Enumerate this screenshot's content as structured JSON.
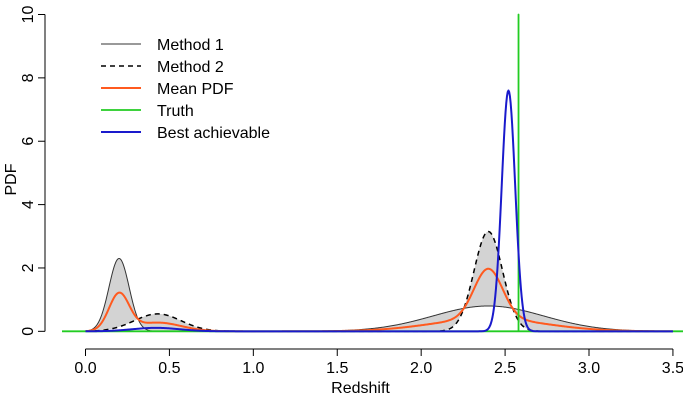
{
  "chart_data": {
    "type": "line",
    "xlabel": "Redshift",
    "ylabel": "PDF",
    "xlim": [
      -0.14,
      3.56
    ],
    "ylim": [
      -0.4,
      10.3
    ],
    "x_ticks": [
      0.0,
      0.5,
      1.0,
      1.5,
      2.0,
      2.5,
      3.0,
      3.5
    ],
    "x_tick_labels": [
      "0.0",
      "0.5",
      "1.0",
      "1.5",
      "2.0",
      "2.5",
      "3.0",
      "3.5"
    ],
    "y_ticks": [
      0,
      2,
      4,
      6,
      8,
      10
    ],
    "y_tick_labels": [
      "0",
      "2",
      "4",
      "6",
      "8",
      "10"
    ],
    "grid": false,
    "legend_position": "top-left",
    "shaded_band": {
      "between": [
        "Method 1",
        "Method 2"
      ],
      "color": "#d3d3d3"
    },
    "series": [
      {
        "name": "Method 1",
        "color": "#333333",
        "dash": "solid",
        "curve_range": [
          0.0,
          3.5
        ],
        "components": [
          {
            "mu": 0.2,
            "sigma": 0.06,
            "amp": 2.3
          },
          {
            "mu": 2.4,
            "sigma": 0.33,
            "amp": 0.8
          }
        ]
      },
      {
        "name": "Method 2",
        "color": "#000000",
        "dash": "dashed",
        "curve_range": [
          0.0,
          3.5
        ],
        "components": [
          {
            "mu": 0.43,
            "sigma": 0.14,
            "amp": 0.55
          },
          {
            "mu": 2.4,
            "sigma": 0.085,
            "amp": 3.15
          }
        ]
      },
      {
        "name": "Mean PDF",
        "color": "#ff5a1f",
        "dash": "solid",
        "curve_range": [
          0.0,
          3.5
        ],
        "components": [
          {
            "mu": 0.2,
            "sigma": 0.06,
            "amp": 1.15
          },
          {
            "mu": 0.43,
            "sigma": 0.14,
            "amp": 0.275
          },
          {
            "mu": 2.4,
            "sigma": 0.33,
            "amp": 0.4
          },
          {
            "mu": 2.4,
            "sigma": 0.085,
            "amp": 1.575
          }
        ]
      },
      {
        "name": "Truth",
        "color": "#22cc22",
        "dash": "solid",
        "x": [
          -0.14,
          2.58,
          2.58,
          2.58,
          3.56
        ],
        "y": [
          0,
          0,
          10,
          0,
          0
        ]
      },
      {
        "name": "Best achievable",
        "color": "#1a1acc",
        "dash": "solid",
        "curve_range": [
          0.0,
          3.5
        ],
        "components": [
          {
            "mu": 0.42,
            "sigma": 0.14,
            "amp": 0.11
          },
          {
            "mu": 2.52,
            "sigma": 0.04,
            "amp": 7.6
          }
        ]
      }
    ]
  }
}
